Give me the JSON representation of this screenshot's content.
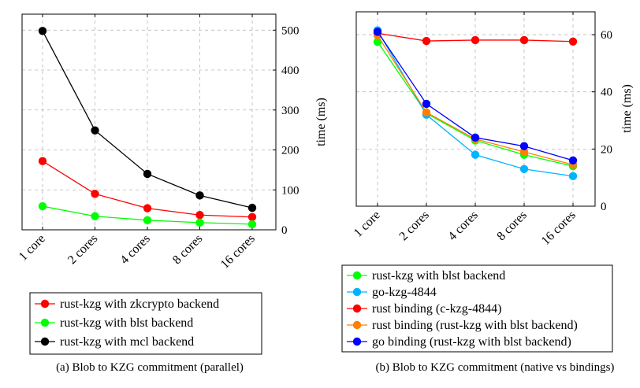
{
  "chart_data": [
    {
      "type": "line",
      "title": "",
      "caption": "(a) Blob to KZG commitment (parallel)",
      "categories": [
        "1 core",
        "2 cores",
        "4 cores",
        "8 cores",
        "16 cores"
      ],
      "ylabel": "time (ms)",
      "xlabel": "",
      "ylim": [
        0,
        540
      ],
      "yticks": [
        0,
        100,
        200,
        300,
        400,
        500
      ],
      "y_axis_side": "right",
      "grid": true,
      "legend_placement": "below",
      "series": [
        {
          "name": "rust-kzg with zkcrypto backend",
          "color": "#ff0000",
          "values": [
            172,
            90,
            54,
            37,
            32
          ]
        },
        {
          "name": "rust-kzg with blst backend",
          "color": "#00ff00",
          "values": [
            59,
            34,
            24,
            18,
            14
          ]
        },
        {
          "name": "rust-kzg with mcl backend",
          "color": "#000000",
          "values": [
            498,
            249,
            140,
            86,
            55
          ]
        }
      ]
    },
    {
      "type": "line",
      "title": "",
      "caption": "(b) Blob to KZG commitment (native vs bindings)",
      "categories": [
        "1 core",
        "2 cores",
        "4 cores",
        "8 cores",
        "16 cores"
      ],
      "ylabel": "time (ms)",
      "xlabel": "",
      "ylim": [
        0,
        68
      ],
      "yticks": [
        0,
        20,
        40,
        60
      ],
      "y_axis_side": "right",
      "grid": true,
      "legend_placement": "below",
      "series": [
        {
          "name": "rust-kzg with blst backend",
          "color": "#00ff00",
          "values": [
            57.5,
            32.5,
            23,
            18,
            14
          ]
        },
        {
          "name": "go-kzg-4844",
          "color": "#00b4ff",
          "values": [
            61.5,
            32,
            18,
            13,
            10.5
          ]
        },
        {
          "name": "rust binding (c-kzg-4844)",
          "color": "#ff0000",
          "values": [
            60.5,
            57.8,
            58.1,
            58.1,
            57.6
          ]
        },
        {
          "name": "rust binding (rust-kzg with blst backend)",
          "color": "#ff8000",
          "values": [
            59.8,
            32.8,
            23.5,
            19,
            14.5
          ]
        },
        {
          "name": "go binding (rust-kzg with blst backend)",
          "color": "#0000ff",
          "values": [
            61,
            35.8,
            24,
            21,
            16
          ]
        }
      ]
    }
  ]
}
